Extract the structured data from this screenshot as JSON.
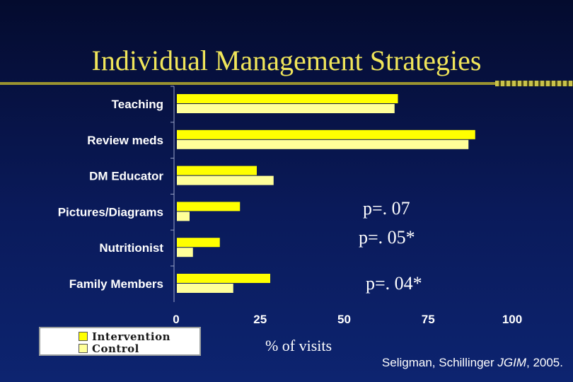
{
  "slide": {
    "title": "Individual Management Strategies",
    "citation_prefix": "Seligman, Schillinger ",
    "citation_journal": "JGIM",
    "citation_suffix": ", 2005."
  },
  "colors": {
    "intervention": "#ffff00",
    "control": "#ffff99",
    "axis_text": "#ffffff",
    "title": "#f0e55a"
  },
  "annotations": [
    {
      "text": "p=. 07",
      "category": "Pictures/Diagrams"
    },
    {
      "text": "p=. 05*",
      "category": "Nutritionist"
    },
    {
      "text": "p=. 04*",
      "category": "Family Members"
    }
  ],
  "chart_data": {
    "type": "bar",
    "orientation": "horizontal",
    "categories": [
      "Teaching",
      "Review meds",
      "DM Educator",
      "Pictures/Diagrams",
      "Nutritionist",
      "Family Members"
    ],
    "series": [
      {
        "name": "Intervention",
        "values": [
          66,
          89,
          24,
          19,
          13,
          28
        ]
      },
      {
        "name": "Control",
        "values": [
          65,
          87,
          29,
          4,
          5,
          17
        ]
      }
    ],
    "xlabel": "% of visits",
    "xlim": [
      0,
      100
    ],
    "xticks": [
      0,
      25,
      50,
      75,
      100
    ],
    "legend_position": "bottom-left",
    "grid": false
  }
}
